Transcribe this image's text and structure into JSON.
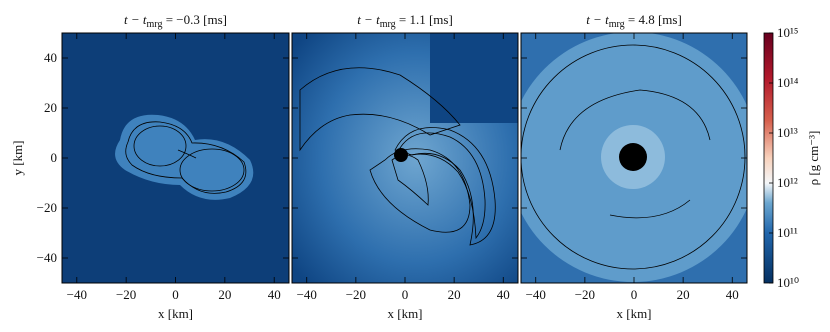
{
  "chart_data": [
    {
      "type": "heatmap",
      "title": "t − t",
      "title_sub": "mrg",
      "title_rest": " = −0.3 [ms]",
      "xlabel": "x [km]",
      "ylabel": "y [km]",
      "xlim": [
        -46,
        46
      ],
      "ylim": [
        -50,
        50
      ],
      "xticks": [
        {
          "value": -40,
          "label": "−40"
        },
        {
          "value": -20,
          "label": "−20"
        },
        0,
        20,
        40
      ],
      "yticks": [
        {
          "value": -40,
          "label": "−40"
        },
        {
          "value": -20,
          "label": "−20"
        },
        0,
        20,
        40
      ]
    },
    {
      "type": "heatmap",
      "title": "t − t",
      "title_sub": "mrg",
      "title_rest": " = 1.1 [ms]",
      "xlabel": "x [km]",
      "xlim": [
        -46,
        46
      ],
      "ylim": [
        -50,
        50
      ],
      "xticks": [
        {
          "value": -40,
          "label": "−40"
        },
        {
          "value": -20,
          "label": "−20"
        },
        0,
        20,
        40
      ]
    },
    {
      "type": "heatmap",
      "title": "t − t",
      "title_sub": "mrg",
      "title_rest": " = 4.8 [ms]",
      "xlabel": "x [km]",
      "xlim": [
        -46,
        46
      ],
      "ylim": [
        -50,
        50
      ],
      "xticks": [
        {
          "value": -40,
          "label": "−40"
        },
        {
          "value": -20,
          "label": "−20"
        },
        0,
        20,
        40
      ]
    },
    {
      "type": "colorbar",
      "label": "ρ [g cm⁻³]",
      "log": true,
      "ylim": [
        10000000000,
        1000000000000000
      ],
      "yticks": [
        {
          "value": 10000000000,
          "label": "10¹⁰"
        },
        {
          "value": 100000000000,
          "label": "10¹¹"
        },
        {
          "value": 1000000000000,
          "label": "10¹²"
        },
        {
          "value": 10000000000000,
          "label": "10¹³"
        },
        {
          "value": 100000000000000,
          "label": "10¹⁴"
        },
        {
          "value": 1000000000000000,
          "label": "10¹⁵"
        }
      ]
    }
  ]
}
